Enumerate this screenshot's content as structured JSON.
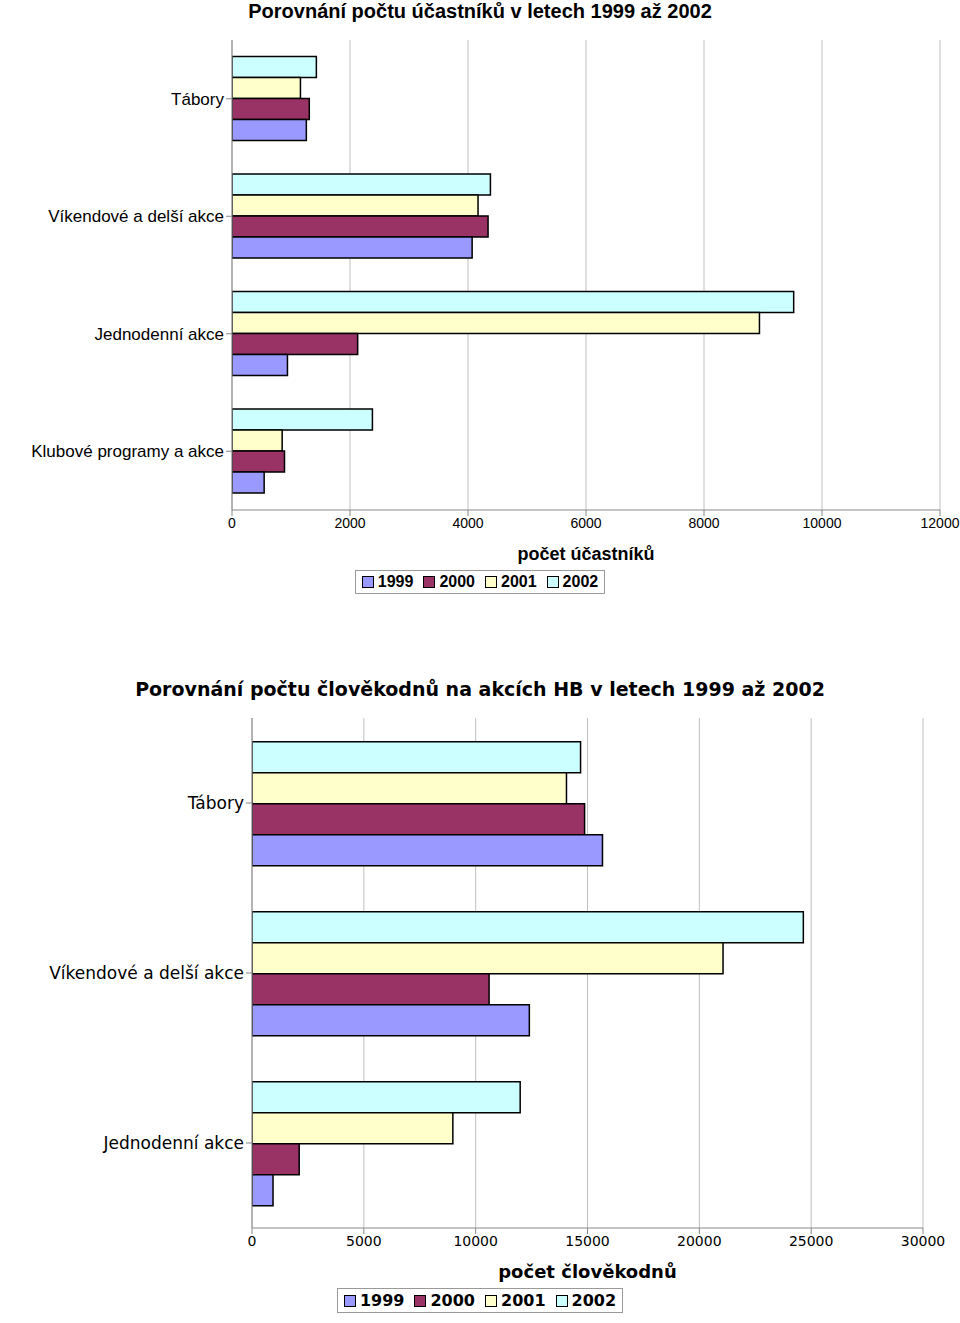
{
  "chart_data": [
    {
      "type": "bar",
      "orientation": "horizontal",
      "title": "Porovnání počtu účastníků v letech 1999 až 2002",
      "x_label": "počet účastníků",
      "categories": [
        "Tábory",
        "Víkendové a delší akce",
        "Jednodenní akce",
        "Klubové programy a akce"
      ],
      "series": [
        {
          "name": "1999",
          "color": "#9999ff",
          "values": [
            1260,
            4070,
            940,
            545
          ]
        },
        {
          "name": "2000",
          "color": "#993366",
          "values": [
            1310,
            4340,
            2130,
            890
          ]
        },
        {
          "name": "2001",
          "color": "#ffffcc",
          "values": [
            1160,
            4170,
            8940,
            850
          ]
        },
        {
          "name": "2002",
          "color": "#ccffff",
          "values": [
            1430,
            4380,
            9520,
            2380
          ]
        }
      ],
      "xlim": [
        0,
        12000
      ],
      "xticks": [
        0,
        2000,
        4000,
        6000,
        8000,
        10000,
        12000
      ],
      "grid": true,
      "legend": "bottom"
    },
    {
      "type": "bar",
      "orientation": "horizontal",
      "title": "Porovnání počtu člověkodnů na akcích HB v letech 1999 až 2002",
      "x_label": "počet člověkodnů",
      "categories": [
        "Tábory",
        "Víkendové a delší akce",
        "Jednodenní akce"
      ],
      "series": [
        {
          "name": "1999",
          "color": "#9999ff",
          "values": [
            15670,
            12400,
            940
          ]
        },
        {
          "name": "2000",
          "color": "#993366",
          "values": [
            14870,
            10600,
            2110
          ]
        },
        {
          "name": "2001",
          "color": "#ffffcc",
          "values": [
            14060,
            21060,
            8980
          ]
        },
        {
          "name": "2002",
          "color": "#ccffff",
          "values": [
            14690,
            24650,
            11990
          ]
        }
      ],
      "xlim": [
        0,
        30000
      ],
      "xticks": [
        0,
        5000,
        10000,
        15000,
        20000,
        25000,
        30000
      ],
      "grid": true,
      "legend": "bottom"
    }
  ]
}
